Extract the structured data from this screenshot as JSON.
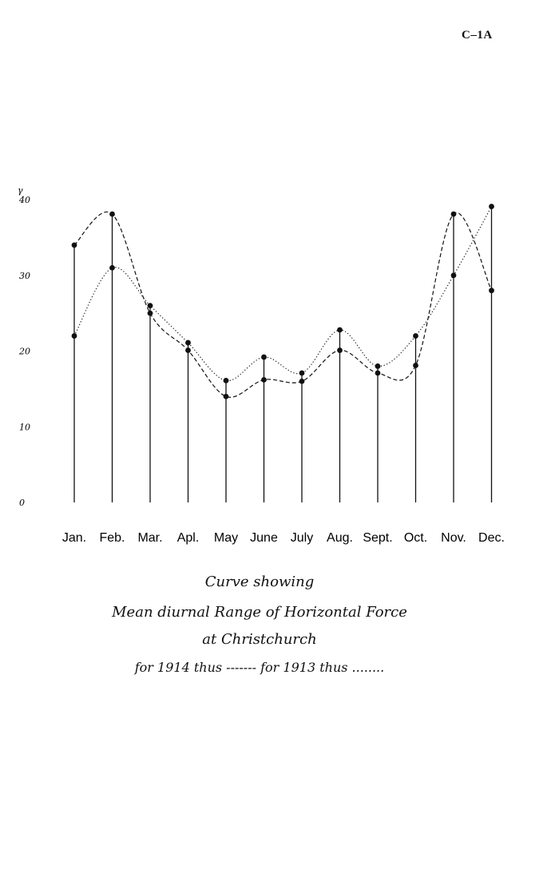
{
  "page_ref": "C–1A",
  "chart_data": {
    "type": "line",
    "unit_symbol": "γ",
    "yticks": [
      "40",
      "30",
      "20",
      "10",
      "0"
    ],
    "ylim": [
      0,
      40
    ],
    "categories": [
      "Jan.",
      "Feb.",
      "Mar.",
      "Apl.",
      "May",
      "June",
      "July",
      "Aug.",
      "Sept.",
      "Oct.",
      "Nov.",
      "Dec."
    ],
    "series": [
      {
        "name": "1914",
        "style": "dashed",
        "color": "#111111",
        "values": [
          34,
          38.1,
          25,
          20.1,
          14,
          16.2,
          16,
          20.1,
          17.1,
          18.1,
          38.1,
          28
        ]
      },
      {
        "name": "1913",
        "style": "dotted",
        "color": "#111111",
        "values": [
          22,
          31,
          26,
          21.1,
          16.1,
          19.2,
          17.1,
          22.8,
          18,
          22,
          30,
          39.1
        ]
      }
    ],
    "grid": false,
    "legend": "caption-below"
  },
  "caption": {
    "line1": "Curve showing",
    "line2": "Mean diurnal Range of Horizontal Force",
    "line3": "at Christchurch",
    "line4": "for 1914 thus ------- for 1913 thus ........"
  }
}
